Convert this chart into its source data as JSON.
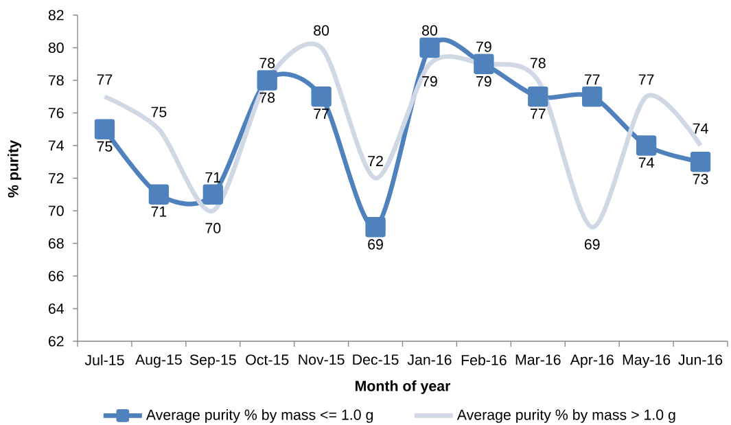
{
  "chart_data": {
    "type": "line",
    "xlabel": "Month of year",
    "ylabel": "% purity",
    "categories": [
      "Jul-15",
      "Aug-15",
      "Sep-15",
      "Oct-15",
      "Nov-15",
      "Dec-15",
      "Jan-16",
      "Feb-16",
      "Mar-16",
      "Apr-16",
      "May-16",
      "Jun-16"
    ],
    "series": [
      {
        "name": "Average purity % by mass <= 1.0 g",
        "color": "#4f81bd",
        "marker": "square",
        "values": [
          75,
          71,
          71,
          78,
          77,
          69,
          80,
          79,
          77,
          77,
          74,
          73
        ]
      },
      {
        "name": "Average purity % by mass > 1.0 g",
        "color": "#d0d7e5",
        "marker": "none",
        "values": [
          77,
          75,
          70,
          78,
          80,
          72,
          79,
          79,
          78,
          69,
          77,
          74
        ]
      }
    ],
    "ylim": [
      62,
      82
    ],
    "yticks": [
      62,
      64,
      66,
      68,
      70,
      72,
      74,
      76,
      78,
      80,
      82
    ],
    "data_labels": true,
    "legend": "bottom",
    "line_style": "solid"
  }
}
